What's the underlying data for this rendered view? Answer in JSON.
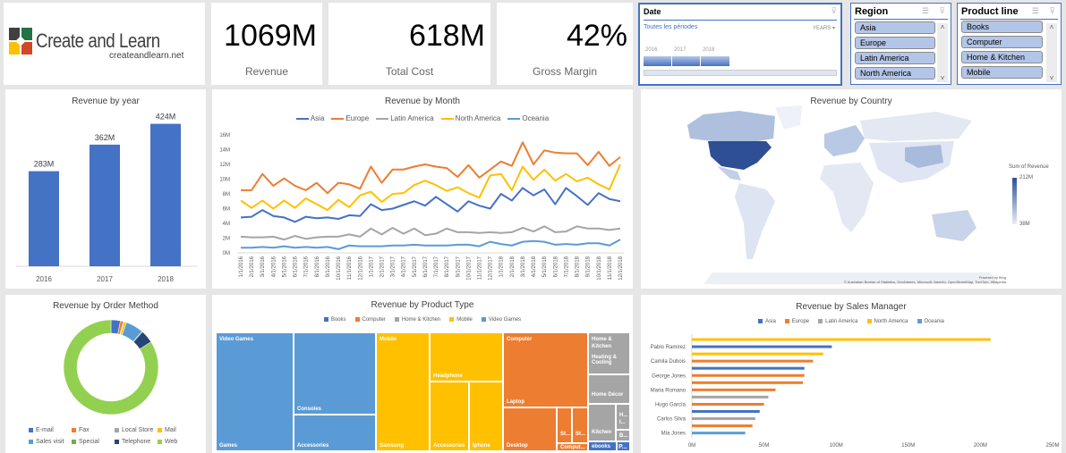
{
  "logo": {
    "title": "Create and Learn",
    "url": "createandlearn.net"
  },
  "kpis": [
    {
      "value": "1069M",
      "label": "Revenue"
    },
    {
      "value": "618M",
      "label": "Total Cost"
    },
    {
      "value": "42%",
      "label": "Gross Margin"
    }
  ],
  "date_slicer": {
    "title": "Date",
    "period": "Toutes les périodes",
    "level": "YEARS",
    "years": [
      "2016",
      "2017",
      "2018"
    ]
  },
  "region_slicer": {
    "title": "Region",
    "items": [
      "Asia",
      "Europe",
      "Latin America",
      "North America"
    ]
  },
  "product_slicer": {
    "title": "Product line",
    "items": [
      "Books",
      "Computer",
      "Home & Kitchen",
      "Mobile"
    ]
  },
  "colors": {
    "Asia": "#4472c4",
    "Europe": "#ed7d31",
    "Latin America": "#a5a5a5",
    "North America": "#ffc000",
    "Oceania": "#5b9bd5"
  },
  "chart_data": [
    {
      "type": "bar",
      "title": "Revenue by year",
      "categories": [
        "2016",
        "2017",
        "2018"
      ],
      "values": [
        283,
        362,
        424
      ],
      "labels": [
        "283M",
        "362M",
        "424M"
      ],
      "ylim": [
        0,
        450
      ],
      "color": "#4472c4"
    },
    {
      "type": "line",
      "title": "Revenue by Month",
      "ylabel": "",
      "yticks": [
        "0M",
        "2M",
        "4M",
        "6M",
        "8M",
        "10M",
        "12M",
        "14M",
        "16M"
      ],
      "ylim": [
        0,
        16
      ],
      "x": [
        "1/1/2016",
        "2/1/2016",
        "3/1/2016",
        "4/1/2016",
        "5/1/2016",
        "6/1/2016",
        "7/1/2016",
        "8/1/2016",
        "9/1/2016",
        "10/1/2016",
        "11/1/2016",
        "12/1/2016",
        "1/1/2017",
        "2/1/2017",
        "3/1/2017",
        "4/1/2017",
        "5/1/2017",
        "6/1/2017",
        "7/1/2017",
        "8/1/2017",
        "9/1/2017",
        "10/1/2017",
        "11/1/2017",
        "12/1/2017",
        "1/1/2018",
        "2/1/2018",
        "3/1/2018",
        "4/1/2018",
        "5/1/2018",
        "6/1/2018",
        "7/1/2018",
        "8/1/2018",
        "9/1/2018",
        "10/1/2018",
        "11/1/2018",
        "12/1/2018"
      ],
      "series": [
        {
          "name": "Asia",
          "color": "#4472c4",
          "values": [
            4.8,
            4.9,
            5.8,
            5.0,
            4.8,
            4.2,
            4.9,
            4.7,
            4.8,
            4.6,
            5.1,
            5.0,
            6.6,
            5.8,
            6.0,
            6.5,
            7.0,
            6.4,
            7.6,
            6.6,
            5.6,
            7.0,
            6.4,
            6.0,
            8.0,
            7.1,
            8.8,
            7.8,
            8.6,
            6.6,
            8.8,
            7.7,
            6.5,
            8.1,
            7.3,
            7.0
          ]
        },
        {
          "name": "Europe",
          "color": "#ed7d31",
          "values": [
            8.5,
            8.5,
            10.7,
            9.1,
            10.1,
            9.1,
            8.5,
            9.5,
            8.1,
            9.5,
            9.3,
            8.7,
            11.7,
            9.5,
            11.3,
            11.3,
            11.7,
            12.0,
            11.7,
            11.5,
            10.3,
            11.9,
            10.2,
            11.3,
            12.4,
            11.8,
            15.0,
            12.0,
            13.9,
            13.6,
            13.5,
            13.5,
            11.9,
            13.7,
            11.8,
            13.0
          ]
        },
        {
          "name": "Latin America",
          "color": "#a5a5a5",
          "values": [
            2.2,
            2.1,
            2.1,
            2.2,
            1.8,
            2.3,
            1.9,
            2.1,
            2.2,
            2.2,
            2.5,
            2.2,
            3.3,
            2.5,
            3.4,
            2.6,
            3.3,
            2.4,
            2.6,
            3.3,
            2.8,
            2.8,
            2.7,
            2.8,
            2.7,
            2.8,
            3.4,
            2.9,
            3.6,
            2.8,
            2.9,
            3.6,
            3.3,
            3.3,
            3.1,
            3.3
          ]
        },
        {
          "name": "North America",
          "color": "#ffc000",
          "values": [
            7.1,
            6.1,
            7.1,
            6.0,
            7.1,
            6.1,
            7.4,
            6.6,
            5.8,
            7.2,
            6.2,
            7.8,
            8.3,
            6.9,
            8.0,
            8.1,
            9.2,
            9.8,
            9.2,
            8.4,
            8.9,
            8.1,
            7.5,
            10.5,
            10.7,
            8.5,
            11.7,
            9.9,
            11.3,
            9.8,
            10.7,
            9.7,
            10.2,
            9.3,
            8.6,
            12.0
          ]
        },
        {
          "name": "Oceania",
          "color": "#5b9bd5",
          "values": [
            0.7,
            0.7,
            0.8,
            0.7,
            0.9,
            0.7,
            0.8,
            0.7,
            0.8,
            0.5,
            1.0,
            0.9,
            0.9,
            0.9,
            1.0,
            1.0,
            1.1,
            1.0,
            1.0,
            1.0,
            1.1,
            1.1,
            0.9,
            1.5,
            1.2,
            1.0,
            1.5,
            1.6,
            1.5,
            1.1,
            1.2,
            1.1,
            1.3,
            1.3,
            1.0,
            1.8
          ]
        }
      ]
    },
    {
      "type": "map",
      "title": "Revenue by Country",
      "legend_title": "Sum of Revenue",
      "max_label": "212M",
      "min_label": "38M",
      "credit": "Powered by Bing",
      "copyright": "© Australian Bureau of Statistics, GeoNames, Microsoft, Navinfo, OpenStreetMap, TomTom, Wikipedia"
    },
    {
      "type": "pie",
      "title": "Revenue by Order Method",
      "categories": [
        "E-mail",
        "Fax",
        "Local Store",
        "Mail",
        "Sales visit",
        "Special",
        "Telephone",
        "Web"
      ],
      "values": [
        3.2,
        1.0,
        0.3,
        0.8,
        6.0,
        0.3,
        4.4,
        84.0
      ],
      "colors": [
        "#4472c4",
        "#ed7d31",
        "#a5a5a5",
        "#ffc000",
        "#5b9bd5",
        "#70ad47",
        "#264478",
        "#92d050"
      ]
    },
    {
      "type": "treemap",
      "title": "Revenue by Product Type",
      "legend": [
        {
          "name": "Books",
          "color": "#4472c4"
        },
        {
          "name": "Computer",
          "color": "#ed7d31"
        },
        {
          "name": "Home & Kitchen",
          "color": "#a5a5a5"
        },
        {
          "name": "Mobile",
          "color": "#ffc000"
        },
        {
          "name": "Video Games",
          "color": "#5b9bd5"
        }
      ],
      "parents": [
        "Video Games",
        "Mobile",
        "Computer",
        "Home & Kitchen"
      ],
      "leaves": [
        "Games",
        "Consoles",
        "Accessories",
        "Samsung",
        "Headphone",
        "Accessories",
        "Iphone",
        "Laptop",
        "Desktop",
        "St...",
        "St...",
        "Comput...",
        "Heating & Cooling",
        "Home Décor",
        "Kitchen",
        "H... I...",
        "B...",
        "ebooks",
        "P..."
      ]
    },
    {
      "type": "bar",
      "orientation": "horizontal",
      "title": "Revenue by Sales Manager",
      "xticks": [
        "0M",
        "50M",
        "100M",
        "150M",
        "200M",
        "250M"
      ],
      "xlim": [
        0,
        250
      ],
      "legend": [
        "Asia",
        "Europe",
        "Latin America",
        "North America",
        "Oceania"
      ],
      "categories": [
        "Pablo Ramirez",
        "Camila Dubois",
        "George Jones",
        "Maria Romano",
        "Hugo García",
        "Carlos Silva",
        "Mia Jones"
      ],
      "bars": [
        {
          "region": "North America",
          "value": 207
        },
        {
          "region": "Asia",
          "value": 97
        },
        {
          "region": "North America",
          "value": 91
        },
        {
          "region": "Europe",
          "value": 84
        },
        {
          "region": "Asia",
          "value": 78
        },
        {
          "region": "Europe",
          "value": 78
        },
        {
          "region": "Europe",
          "value": 77
        },
        {
          "region": "Europe",
          "value": 58
        },
        {
          "region": "Latin America",
          "value": 53
        },
        {
          "region": "Europe",
          "value": 50
        },
        {
          "region": "Asia",
          "value": 47
        },
        {
          "region": "Latin America",
          "value": 44
        },
        {
          "region": "Europe",
          "value": 42
        },
        {
          "region": "Oceania",
          "value": 37
        }
      ]
    }
  ]
}
